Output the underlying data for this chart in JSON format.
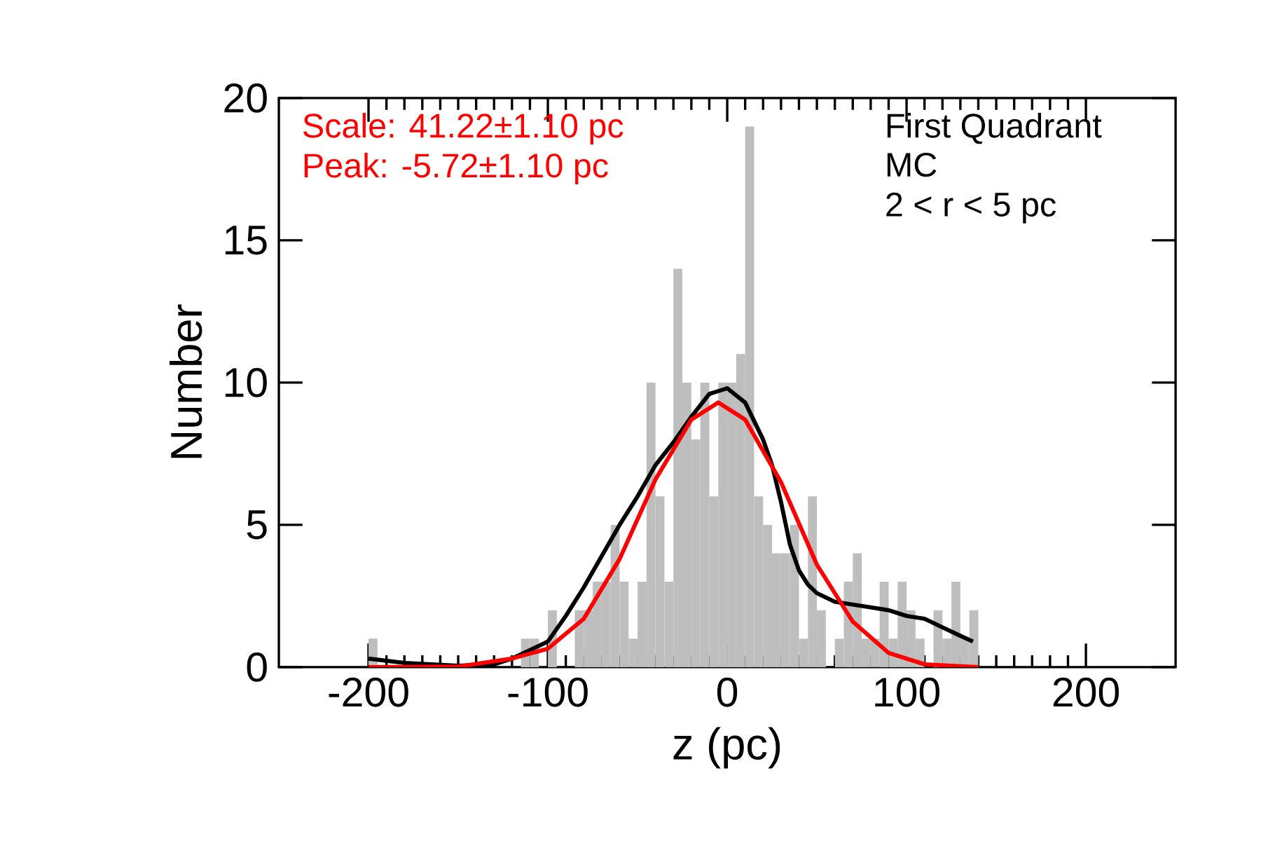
{
  "chart_data": {
    "type": "histogram",
    "xlabel": "z (pc)",
    "ylabel": "Number",
    "color": "#bebebe",
    "bins": [
      -200,
      -195,
      -190,
      -185,
      -180,
      -175,
      -170,
      -165,
      -160,
      -155,
      -150,
      -145,
      -140,
      -135,
      -130,
      -125,
      -120,
      -115,
      -110,
      -105,
      -100,
      -95,
      -90,
      -85,
      -80,
      -75,
      -70,
      -65,
      -60,
      -55,
      -50,
      -45,
      -40,
      -35,
      -30,
      -25,
      -20,
      -15,
      -10,
      -5,
      0,
      5,
      10,
      15,
      20,
      25,
      30,
      35,
      40,
      45,
      50,
      55,
      60,
      65,
      70,
      75,
      80,
      85,
      90,
      95,
      100,
      105,
      110,
      115,
      120,
      125,
      130,
      135,
      140
    ],
    "values": [
      1,
      0,
      0,
      0,
      0,
      0,
      0,
      0,
      0,
      0,
      0,
      0,
      0,
      0,
      0,
      0,
      0,
      1,
      1,
      0,
      2,
      0,
      0,
      2,
      2,
      3,
      3,
      5,
      3,
      1,
      3,
      10,
      6,
      3,
      14,
      10,
      8,
      10,
      6,
      10,
      10,
      11,
      19,
      6,
      5,
      4,
      4,
      5,
      1,
      6,
      2,
      0,
      1,
      3,
      4,
      1,
      1,
      3,
      1,
      3,
      2,
      1,
      0,
      2,
      1,
      3,
      1,
      2
    ],
    "series": [
      {
        "type": "line",
        "color": "#000000",
        "x": [
          -200,
          -180,
          -150,
          -130,
          -120,
          -110,
          -100,
          -90,
          -80,
          -70,
          -60,
          -50,
          -40,
          -30,
          -20,
          -10,
          0,
          10,
          20,
          25,
          30,
          35,
          40,
          45,
          50,
          60,
          70,
          80,
          90,
          100,
          110,
          120,
          130,
          137
        ],
        "values": [
          0.3,
          0.15,
          0.05,
          0.1,
          0.3,
          0.6,
          0.9,
          1.8,
          2.8,
          3.9,
          5.0,
          6.0,
          7.1,
          7.9,
          8.8,
          9.6,
          9.8,
          9.3,
          8.0,
          7.1,
          5.8,
          4.3,
          3.4,
          2.9,
          2.6,
          2.3,
          2.2,
          2.1,
          2.0,
          1.8,
          1.7,
          1.4,
          1.1,
          0.9
        ]
      },
      {
        "type": "line",
        "color": "#ff0000",
        "x": [
          -200,
          -150,
          -120,
          -100,
          -80,
          -60,
          -40,
          -20,
          -5,
          10,
          30,
          50,
          70,
          90,
          110,
          140
        ],
        "values": [
          0,
          0.02,
          0.3,
          0.65,
          1.7,
          3.8,
          6.6,
          8.7,
          9.3,
          8.7,
          6.5,
          3.6,
          1.6,
          0.5,
          0.1,
          0
        ]
      }
    ],
    "xlim": [
      -250,
      250
    ],
    "xticks": [
      -200,
      -100,
      0,
      100,
      200
    ],
    "ylim": [
      0,
      20
    ],
    "yticks": [
      0,
      5,
      10,
      15,
      20
    ],
    "grid": false,
    "annotations": [
      "Scale: 41.22±1.10 pc",
      "Peak: -5.72±1.10 pc",
      "First Quadrant",
      "MC",
      "2 < r < 5 pc"
    ]
  }
}
